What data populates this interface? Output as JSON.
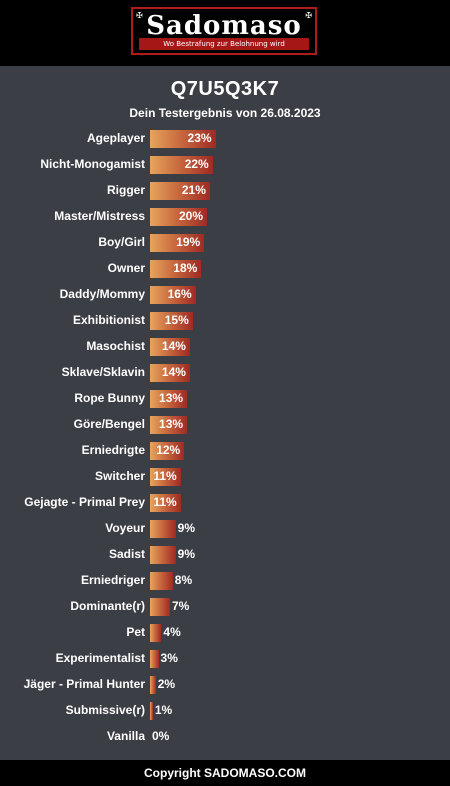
{
  "brand": {
    "name": "Sadomaso",
    "tagline": "Wo Bestrafung zur Belohnung wird",
    "accent": "#b01c1c"
  },
  "result": {
    "title": "Q7U5Q3K7",
    "subtitle": "Dein Testergebnis von 26.08.2023"
  },
  "chart_data": {
    "type": "bar",
    "orientation": "horizontal",
    "unit": "%",
    "categories": [
      "Ageplayer",
      "Nicht-Monogamist",
      "Rigger",
      "Master/Mistress",
      "Boy/Girl",
      "Owner",
      "Daddy/Mommy",
      "Exhibitionist",
      "Masochist",
      "Sklave/Sklavin",
      "Rope Bunny",
      "Göre/Bengel",
      "Erniedrigte",
      "Switcher",
      "Gejagte - Primal Prey",
      "Voyeur",
      "Sadist",
      "Erniedriger",
      "Dominante(r)",
      "Pet",
      "Experimentalist",
      "Jäger - Primal Hunter",
      "Submissive(r)",
      "Vanilla"
    ],
    "values": [
      23,
      22,
      21,
      20,
      19,
      18,
      16,
      15,
      14,
      14,
      13,
      13,
      12,
      11,
      11,
      9,
      9,
      8,
      7,
      4,
      3,
      2,
      1,
      0
    ],
    "labels": [
      "23%",
      "22%",
      "21%",
      "20%",
      "19%",
      "18%",
      "16%",
      "15%",
      "14%",
      "14%",
      "13%",
      "13%",
      "12%",
      "11%",
      "11%",
      "9%",
      "9%",
      "8%",
      "7%",
      "4%",
      "3%",
      "2%",
      "1%",
      "0%"
    ],
    "bar_colors": [
      "#e7a55c",
      "#9e2a24"
    ]
  },
  "footer": {
    "copyright": "Copyright SADOMASO.COM"
  }
}
